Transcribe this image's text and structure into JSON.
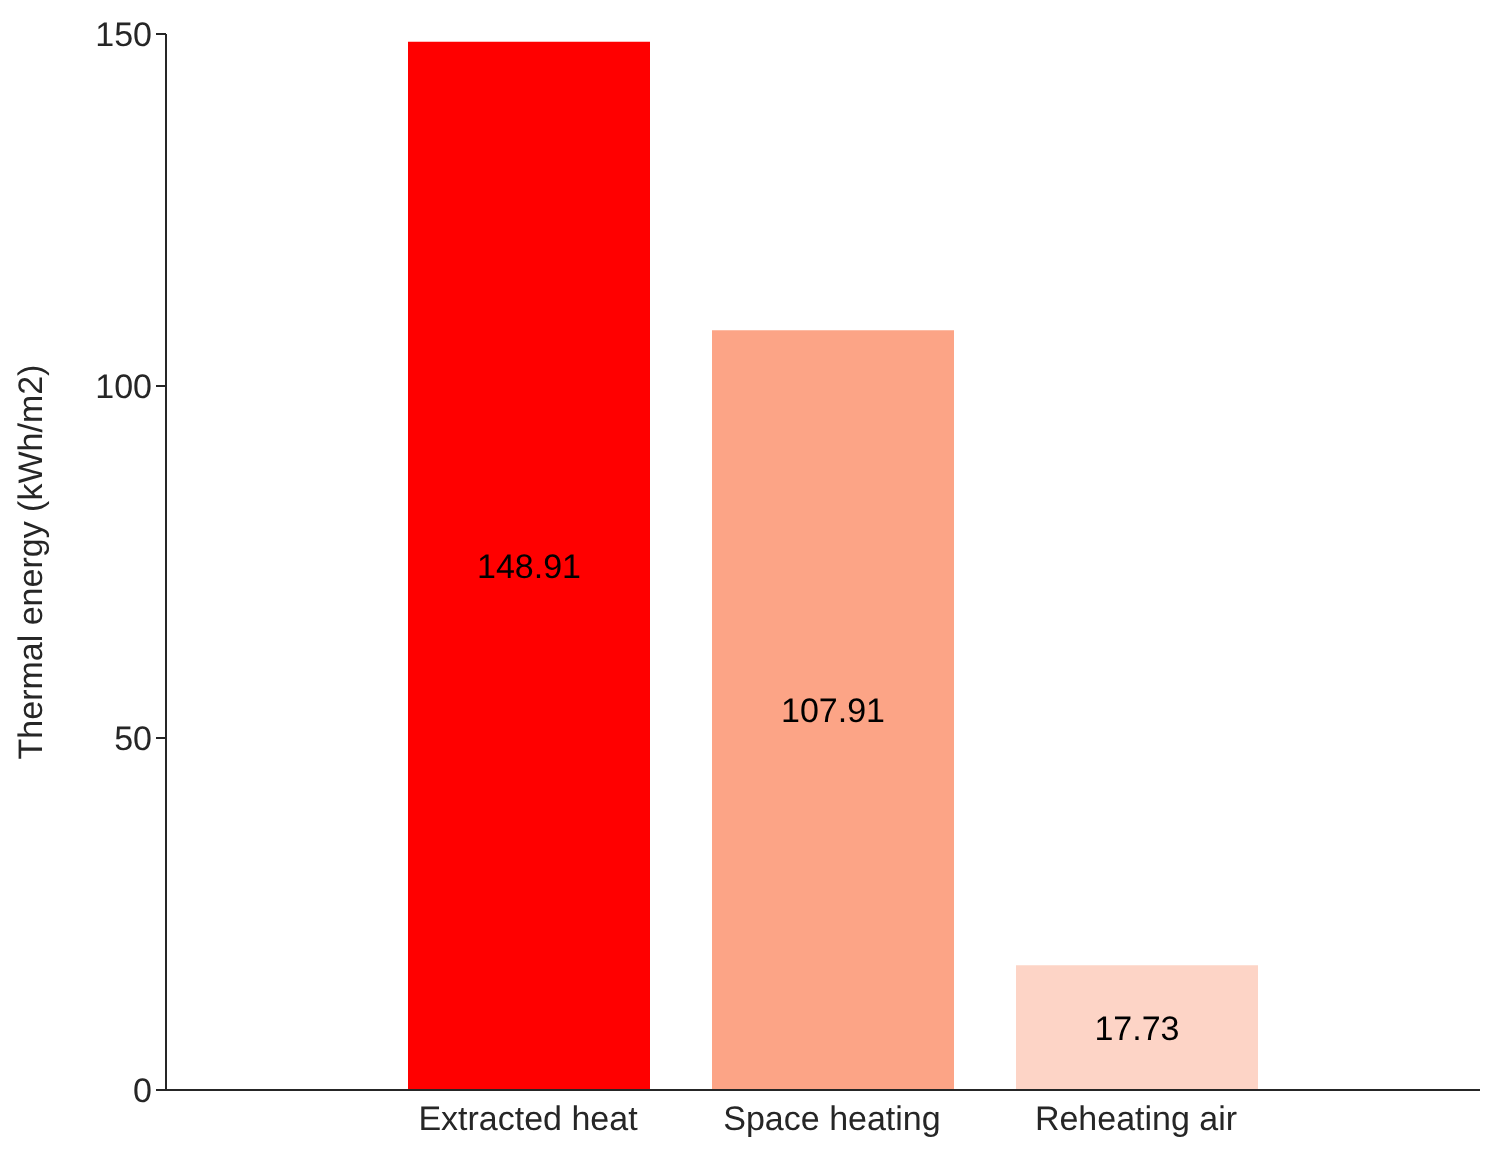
{
  "chart_data": {
    "type": "bar",
    "ylabel": "Thermal energy (kWh/m2)",
    "categories": [
      "Extracted heat",
      "Space heating",
      "Reheating air"
    ],
    "values": [
      148.91,
      107.91,
      17.73
    ],
    "colors": [
      "#ff0000",
      "#fca486",
      "#fdd4c6"
    ],
    "ylim": [
      0,
      150
    ],
    "yticks": [
      0,
      50,
      100,
      150
    ],
    "data_labels": true,
    "grid": false
  }
}
